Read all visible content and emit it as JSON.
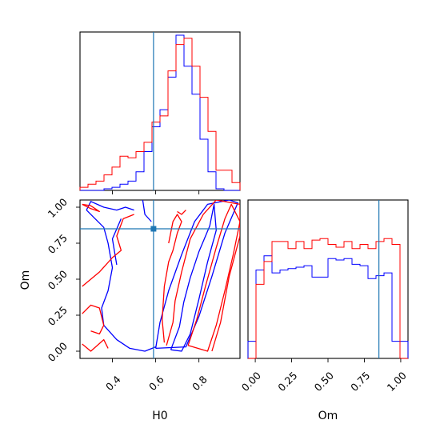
{
  "chart_data": {
    "type": "corner",
    "parameters": [
      "H0",
      "Om"
    ],
    "xlabel": "H0",
    "ylabel": "Om",
    "xlabel_bottom_right": "Om",
    "colors": {
      "series_a": "#0000ff",
      "series_b": "#ff0000",
      "truth": "#1f77b4"
    },
    "truth": {
      "H0": 0.59,
      "Om": 0.85
    },
    "h0_range": [
      0.25,
      0.99
    ],
    "om_range": [
      -0.05,
      1.05
    ],
    "h0_ticks": [
      "0.4",
      "0.6",
      "0.8"
    ],
    "om_ticks": [
      "0.00",
      "0.25",
      "0.50",
      "0.75",
      "1.00"
    ],
    "om_tick_values": [
      0.0,
      0.25,
      0.5,
      0.75,
      1.0
    ],
    "h0_tick_values": [
      0.4,
      0.6,
      0.8
    ],
    "panels": {
      "h0_histogram": {
        "bin_edges": [
          0.25,
          0.287,
          0.324,
          0.361,
          0.398,
          0.435,
          0.472,
          0.509,
          0.546,
          0.583,
          0.62,
          0.657,
          0.694,
          0.731,
          0.768,
          0.805,
          0.842,
          0.879,
          0.916,
          0.953,
          0.99
        ],
        "series": [
          {
            "color": "blue",
            "counts": [
              0,
              0,
              0,
              0.01,
              0.02,
              0.04,
              0.06,
              0.12,
              0.25,
              0.41,
              0.52,
              0.73,
              1.0,
              0.8,
              0.62,
              0.33,
              0.12,
              0.01,
              0,
              0
            ]
          },
          {
            "color": "red",
            "counts": [
              0.02,
              0.04,
              0.06,
              0.1,
              0.15,
              0.22,
              0.21,
              0.25,
              0.31,
              0.44,
              0.48,
              0.77,
              0.94,
              0.98,
              0.8,
              0.6,
              0.38,
              0.13,
              0.13,
              0.05
            ]
          }
        ]
      },
      "om_histogram": {
        "bin_edges": [
          -0.05,
          0.005,
          0.06,
          0.115,
          0.17,
          0.225,
          0.28,
          0.335,
          0.39,
          0.445,
          0.5,
          0.555,
          0.61,
          0.665,
          0.72,
          0.775,
          0.83,
          0.885,
          0.94,
          0.995,
          1.05
        ],
        "series": [
          {
            "color": "blue",
            "counts": [
              0.12,
              0.62,
              0.72,
              0.6,
              0.62,
              0.63,
              0.64,
              0.65,
              0.57,
              0.57,
              0.7,
              0.69,
              0.7,
              0.66,
              0.65,
              0.56,
              0.58,
              0.6,
              0.12,
              0.12
            ]
          },
          {
            "color": "red",
            "counts": [
              0.0,
              0.52,
              0.68,
              0.82,
              0.82,
              0.77,
              0.82,
              0.77,
              0.83,
              0.84,
              0.8,
              0.78,
              0.82,
              0.77,
              0.8,
              0.77,
              0.82,
              0.84,
              0.8,
              0.0
            ]
          }
        ]
      },
      "joint_contours": {
        "series": [
          {
            "color": "blue",
            "levels": [
              [
                [
                  0.67,
                  0.01
                ],
                [
                  0.71,
                  0.17
                ],
                [
                  0.73,
                  0.34
                ],
                [
                  0.76,
                  0.51
                ],
                [
                  0.8,
                  0.69
                ],
                [
                  0.85,
                  0.87
                ],
                [
                  0.87,
                  1.02
                ],
                [
                  0.88,
                  0.84
                ],
                [
                  0.84,
                  0.62
                ],
                [
                  0.8,
                  0.36
                ],
                [
                  0.76,
                  0.12
                ],
                [
                  0.72,
                  0.0
                ],
                [
                  0.67,
                  0.01
                ]
              ],
              [
                [
                  0.6,
                  0.02
                ],
                [
                  0.62,
                  0.2
                ],
                [
                  0.66,
                  0.42
                ],
                [
                  0.72,
                  0.67
                ],
                [
                  0.78,
                  0.9
                ],
                [
                  0.84,
                  1.02
                ],
                [
                  0.94,
                  1.05
                ],
                [
                  0.98,
                  1.03
                ],
                [
                  0.92,
                  0.82
                ],
                [
                  0.86,
                  0.52
                ],
                [
                  0.8,
                  0.24
                ],
                [
                  0.74,
                  0.03
                ],
                [
                  0.6,
                  0.02
                ]
              ],
              [
                [
                  0.28,
                  0.98
                ],
                [
                  0.32,
                  0.92
                ],
                [
                  0.36,
                  0.86
                ],
                [
                  0.38,
                  0.75
                ],
                [
                  0.4,
                  0.58
                ],
                [
                  0.38,
                  0.42
                ],
                [
                  0.35,
                  0.3
                ],
                [
                  0.36,
                  0.18
                ],
                [
                  0.42,
                  0.08
                ],
                [
                  0.48,
                  0.02
                ],
                [
                  0.55,
                  0.0
                ],
                [
                  0.6,
                  0.03
                ]
              ],
              [
                [
                  0.28,
                  0.98
                ],
                [
                  0.3,
                  1.04
                ],
                [
                  0.36,
                  1.0
                ],
                [
                  0.42,
                  0.98
                ],
                [
                  0.46,
                  1.0
                ],
                [
                  0.5,
                  0.98
                ]
              ],
              [
                [
                  0.44,
                  0.92
                ],
                [
                  0.4,
                  0.78
                ],
                [
                  0.42,
                  0.6
                ]
              ],
              [
                [
                  0.54,
                  1.05
                ],
                [
                  0.55,
                  0.95
                ],
                [
                  0.58,
                  0.9
                ]
              ]
            ]
          },
          {
            "color": "red",
            "levels": [
              [
                [
                  0.75,
                  0.04
                ],
                [
                  0.79,
                  0.22
                ],
                [
                  0.83,
                  0.45
                ],
                [
                  0.88,
                  0.72
                ],
                [
                  0.92,
                  0.92
                ],
                [
                  0.95,
                  1.02
                ],
                [
                  0.99,
                  0.9
                ],
                [
                  0.96,
                  0.68
                ],
                [
                  0.92,
                  0.42
                ],
                [
                  0.88,
                  0.18
                ],
                [
                  0.84,
                  0.0
                ],
                [
                  0.75,
                  0.04
                ]
              ],
              [
                [
                  0.65,
                  0.04
                ],
                [
                  0.68,
                  0.2
                ],
                [
                  0.69,
                  0.35
                ],
                [
                  0.72,
                  0.55
                ],
                [
                  0.76,
                  0.78
                ],
                [
                  0.82,
                  0.95
                ],
                [
                  0.88,
                  1.05
                ],
                [
                  0.99,
                  1.02
                ],
                [
                  0.99,
                  0.8
                ],
                [
                  0.94,
                  0.52
                ],
                [
                  0.9,
                  0.2
                ],
                [
                  0.86,
                  0.0
                ]
              ],
              [
                [
                  0.26,
                  1.02
                ],
                [
                  0.3,
                  1.01
                ],
                [
                  0.34,
                  0.97
                ],
                [
                  0.3,
                  0.99
                ],
                [
                  0.26,
                  1.02
                ]
              ],
              [
                [
                  0.26,
                  0.05
                ],
                [
                  0.3,
                  0.0
                ],
                [
                  0.36,
                  0.08
                ],
                [
                  0.38,
                  0.02
                ]
              ],
              [
                [
                  0.26,
                  0.45
                ],
                [
                  0.34,
                  0.55
                ],
                [
                  0.4,
                  0.65
                ],
                [
                  0.44,
                  0.7
                ],
                [
                  0.42,
                  0.8
                ],
                [
                  0.45,
                  0.92
                ],
                [
                  0.5,
                  0.95
                ]
              ],
              [
                [
                  0.26,
                  0.26
                ],
                [
                  0.3,
                  0.32
                ],
                [
                  0.34,
                  0.3
                ],
                [
                  0.36,
                  0.18
                ],
                [
                  0.34,
                  0.12
                ],
                [
                  0.3,
                  0.14
                ]
              ],
              [
                [
                  0.66,
                  0.75
                ],
                [
                  0.68,
                  0.9
                ],
                [
                  0.7,
                  0.95
                ],
                [
                  0.72,
                  0.9
                ],
                [
                  0.7,
                  0.82
                ],
                [
                  0.68,
                  0.7
                ],
                [
                  0.66,
                  0.62
                ],
                [
                  0.64,
                  0.45
                ],
                [
                  0.63,
                  0.22
                ],
                [
                  0.64,
                  0.06
                ]
              ],
              [
                [
                  0.7,
                  0.97
                ],
                [
                  0.72,
                  0.95
                ],
                [
                  0.74,
                  0.98
                ]
              ]
            ]
          }
        ]
      }
    }
  }
}
